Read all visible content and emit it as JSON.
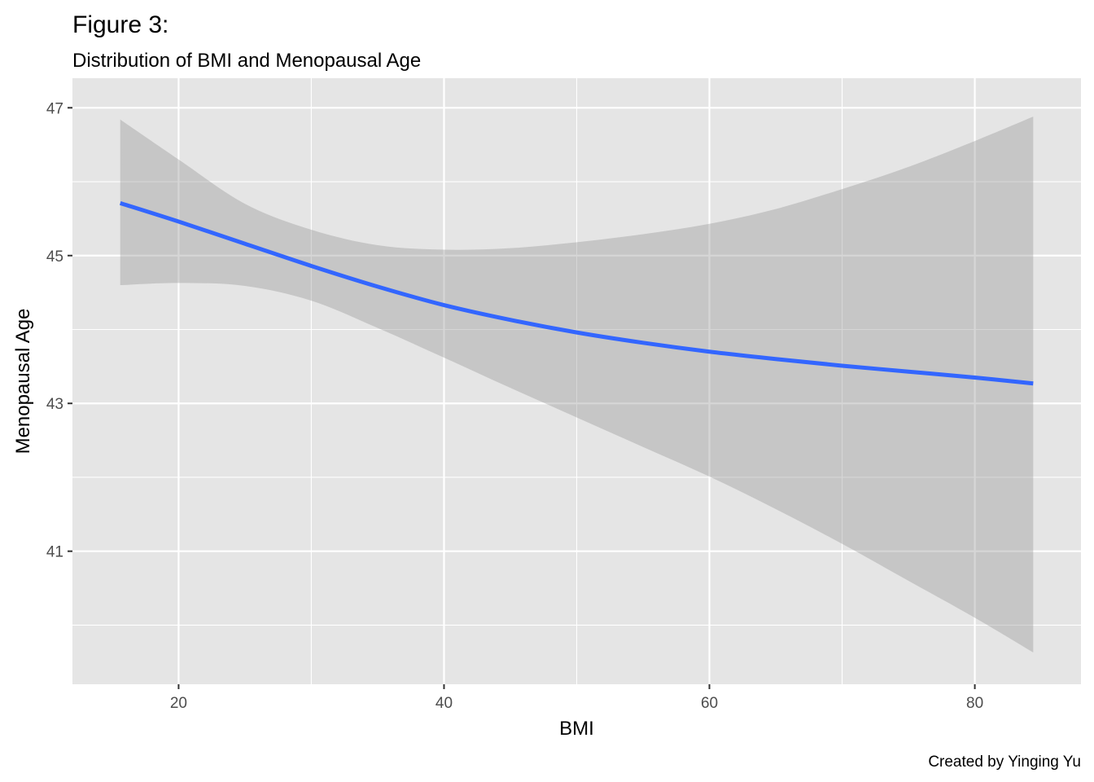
{
  "chart_data": {
    "type": "line",
    "title": "Figure 3:",
    "subtitle": "Distribution of BMI and Menopausal Age",
    "xlabel": "BMI",
    "ylabel": "Menopausal Age",
    "caption": "Created by Yinging Yu",
    "xlim": [
      12,
      88
    ],
    "ylim": [
      39.2,
      47.4
    ],
    "x_ticks": [
      20,
      40,
      60,
      80
    ],
    "y_ticks": [
      41,
      43,
      45,
      47
    ],
    "x_tick_labels": [
      "20",
      "40",
      "60",
      "80"
    ],
    "y_tick_labels": [
      "41",
      "43",
      "45",
      "47"
    ],
    "grid": true,
    "legend": "none",
    "colors": {
      "line": "#3366ff",
      "ribbon": "#bdbdbd",
      "panel": "#e5e5e5",
      "grid": "#ffffff"
    },
    "series": [
      {
        "x": [
          15.6,
          20,
          25,
          30,
          35,
          40,
          45,
          50,
          55,
          60,
          65,
          70,
          75,
          80,
          84.4
        ],
        "y": [
          45.71,
          45.46,
          45.16,
          44.86,
          44.58,
          44.33,
          44.13,
          43.96,
          43.82,
          43.7,
          43.6,
          43.51,
          43.43,
          43.35,
          43.27
        ],
        "lower": [
          44.6,
          44.63,
          44.59,
          44.39,
          44.02,
          43.62,
          43.21,
          42.81,
          42.41,
          42.01,
          41.57,
          41.1,
          40.6,
          40.1,
          39.63
        ],
        "upper": [
          46.84,
          46.3,
          45.7,
          45.35,
          45.14,
          45.08,
          45.1,
          45.18,
          45.29,
          45.43,
          45.63,
          45.9,
          46.2,
          46.55,
          46.88
        ]
      }
    ]
  }
}
